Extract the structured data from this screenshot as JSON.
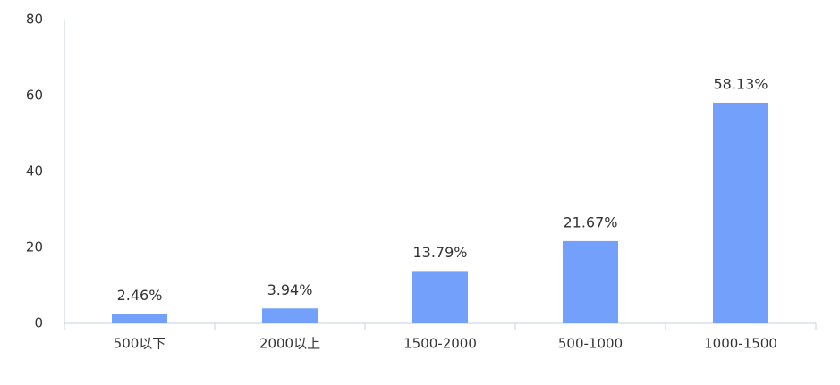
{
  "chart_data": {
    "type": "bar",
    "categories": [
      "500以下",
      "2000以上",
      "1500-2000",
      "500-1000",
      "1000-1500"
    ],
    "values": [
      2.46,
      3.94,
      13.79,
      21.67,
      58.13
    ],
    "value_labels": [
      "2.46%",
      "3.94%",
      "13.79%",
      "21.67%",
      "58.13%"
    ],
    "color": "#73a0fa",
    "ylim": [
      0,
      80
    ],
    "yticks": [
      0,
      20,
      40,
      60,
      80
    ],
    "grid": false
  }
}
